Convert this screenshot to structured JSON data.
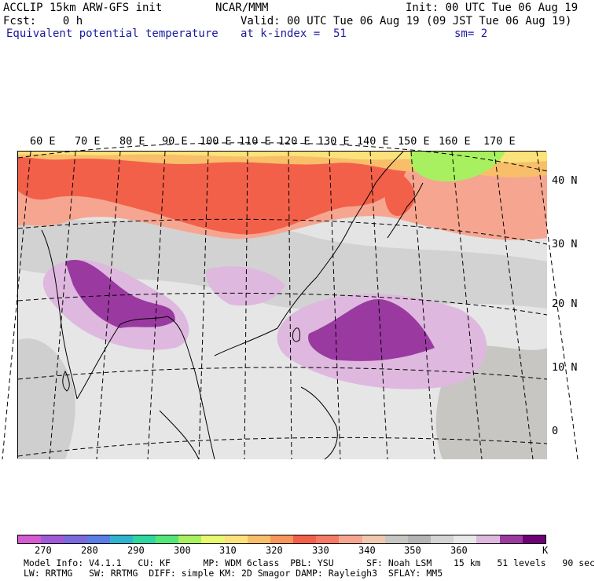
{
  "header": {
    "model": "ACCLIP 15km ARW-GFS init",
    "org": "NCAR/MMM",
    "init": "Init: 00 UTC Tue 06 Aug 19",
    "fcst": "Fcst:    0 h",
    "valid": "Valid: 00 UTC Tue 06 Aug 19 (09 JST Tue 06 Aug 19)",
    "field": "Equivalent potential temperature",
    "level": "at k-index =  51",
    "smooth": "sm= 2"
  },
  "map": {
    "lon_labels": [
      "60 E",
      "70 E",
      "80 E",
      "90 E",
      "100 E",
      "110 E",
      "120 E",
      "130 E",
      "140 E",
      "150 E",
      "160 E",
      "170 E"
    ],
    "lat_labels": [
      "40 N",
      "30 N",
      "20 N",
      "10 N",
      "0"
    ]
  },
  "colorbar": {
    "colors": [
      "#d65ad0",
      "#a05ad8",
      "#7a6adc",
      "#5a7ee6",
      "#2fb4cf",
      "#2ed6a0",
      "#55e67a",
      "#a8f060",
      "#e8f870",
      "#fbe27a",
      "#f8be6a",
      "#f7955a",
      "#f2604a",
      "#f57a66",
      "#f6a690",
      "#f0c8b0",
      "#c8c6c2",
      "#b4b4b4",
      "#d4d4d4",
      "#e8e8e8",
      "#deb8de",
      "#9a3aa0",
      "#6e0078"
    ],
    "labels": [
      "270",
      "280",
      "290",
      "300",
      "310",
      "320",
      "330",
      "340",
      "350",
      "360"
    ],
    "unit": "K"
  },
  "model_info": {
    "line1": "Model Info: V4.1.1   CU: KF      MP: WDM 6class  PBL: YSU      SF: Noah LSM    15 km   51 levels   90 sec",
    "line2": "LW: RRTMG   SW: RRTMG  DIFF: simple KM: 2D Smagor DAMP: Rayleigh3  SFLAY: MM5"
  }
}
